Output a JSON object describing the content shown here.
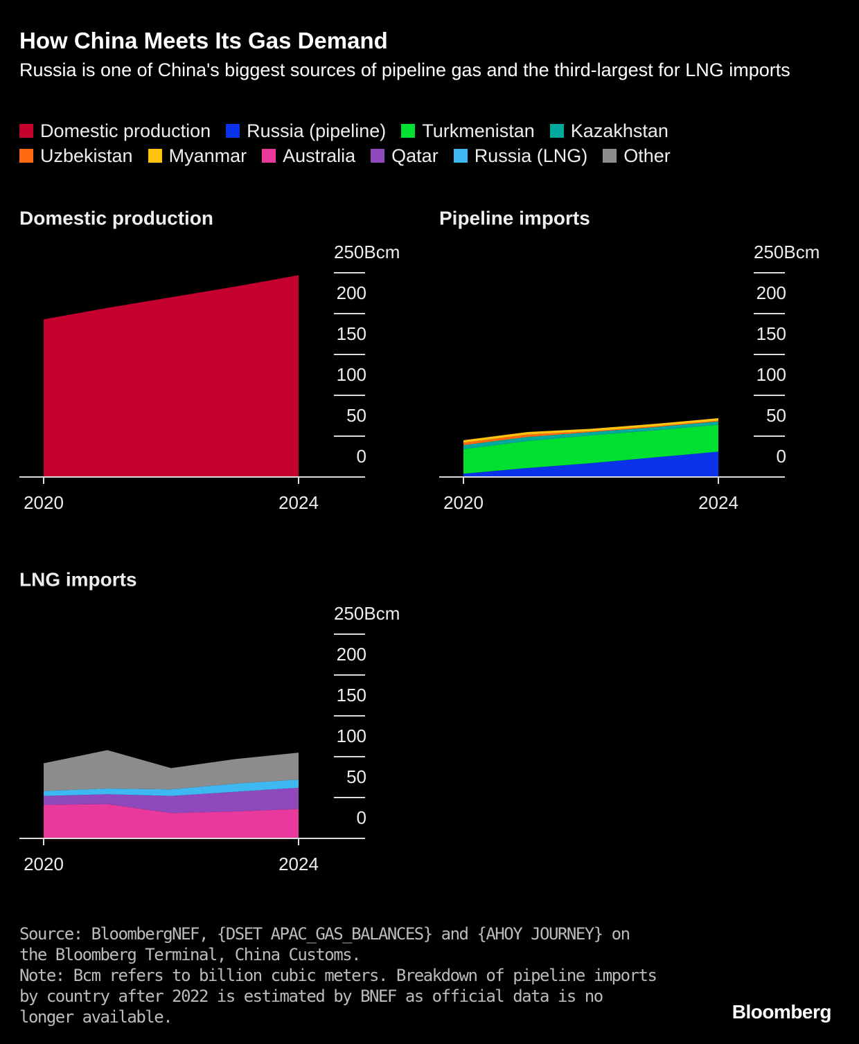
{
  "header": {
    "title": "How China Meets Its Gas Demand",
    "subtitle": "Russia is one of China's biggest sources of pipeline gas and the third-largest for LNG imports"
  },
  "chart_data": [
    {
      "type": "area",
      "title": "Domestic production",
      "x": [
        2020,
        2021,
        2022,
        2023,
        2024
      ],
      "xlim": [
        2020,
        2024
      ],
      "xticks": [
        2020,
        2024
      ],
      "ylim": [
        0,
        250
      ],
      "yticks": [
        0,
        50,
        100,
        150,
        200,
        {
          "value": 250,
          "label": "250Bcm"
        }
      ],
      "series": [
        {
          "name": "Domestic production",
          "color": "#c4002f",
          "values": [
            193,
            207,
            220,
            233,
            247
          ]
        }
      ]
    },
    {
      "type": "area",
      "title": "Pipeline imports",
      "x": [
        2020,
        2021,
        2022,
        2023,
        2024
      ],
      "xlim": [
        2020,
        2024
      ],
      "xticks": [
        2020,
        2024
      ],
      "ylim": [
        0,
        250
      ],
      "yticks": [
        0,
        50,
        100,
        150,
        200,
        {
          "value": 250,
          "label": "250Bcm"
        }
      ],
      "series": [
        {
          "name": "Russia (pipeline)",
          "color": "#0a32e8",
          "values": [
            4,
            11,
            17,
            24,
            31
          ]
        },
        {
          "name": "Turkmenistan",
          "color": "#00e030",
          "values": [
            30,
            33,
            34,
            33,
            33
          ]
        },
        {
          "name": "Kazakhstan",
          "color": "#00a99d",
          "values": [
            5,
            5,
            4,
            4,
            4
          ]
        },
        {
          "name": "Uzbekistan",
          "color": "#ff6a13",
          "values": [
            3,
            3,
            1,
            1,
            1
          ]
        },
        {
          "name": "Myanmar",
          "color": "#ffc20e",
          "values": [
            3,
            3,
            3,
            3,
            3
          ]
        }
      ]
    },
    {
      "type": "area",
      "title": "LNG imports",
      "x": [
        2020,
        2021,
        2022,
        2023,
        2024
      ],
      "xlim": [
        2020,
        2024
      ],
      "xticks": [
        2020,
        2024
      ],
      "ylim": [
        0,
        250
      ],
      "yticks": [
        0,
        50,
        100,
        150,
        200,
        {
          "value": 250,
          "label": "250Bcm"
        }
      ],
      "series": [
        {
          "name": "Australia",
          "color": "#e8399c",
          "values": [
            41,
            42,
            31,
            33,
            36
          ]
        },
        {
          "name": "Qatar",
          "color": "#9048bd",
          "values": [
            11,
            12,
            21,
            24,
            26
          ]
        },
        {
          "name": "Russia (LNG)",
          "color": "#3db8f0",
          "values": [
            6,
            7,
            8,
            10,
            10
          ]
        },
        {
          "name": "Other",
          "color": "#8c8c8c",
          "values": [
            34,
            47,
            26,
            30,
            33
          ]
        }
      ]
    }
  ],
  "footer": {
    "source": "Source: BloombergNEF, {DSET APAC_GAS_BALANCES} and {AHOY JOURNEY} on the Bloomberg Terminal, China Customs.",
    "note": "Note: Bcm refers to billion cubic meters. Breakdown of pipeline imports by country after 2022 is estimated by BNEF as official data is no longer available.",
    "brand": "Bloomberg"
  }
}
